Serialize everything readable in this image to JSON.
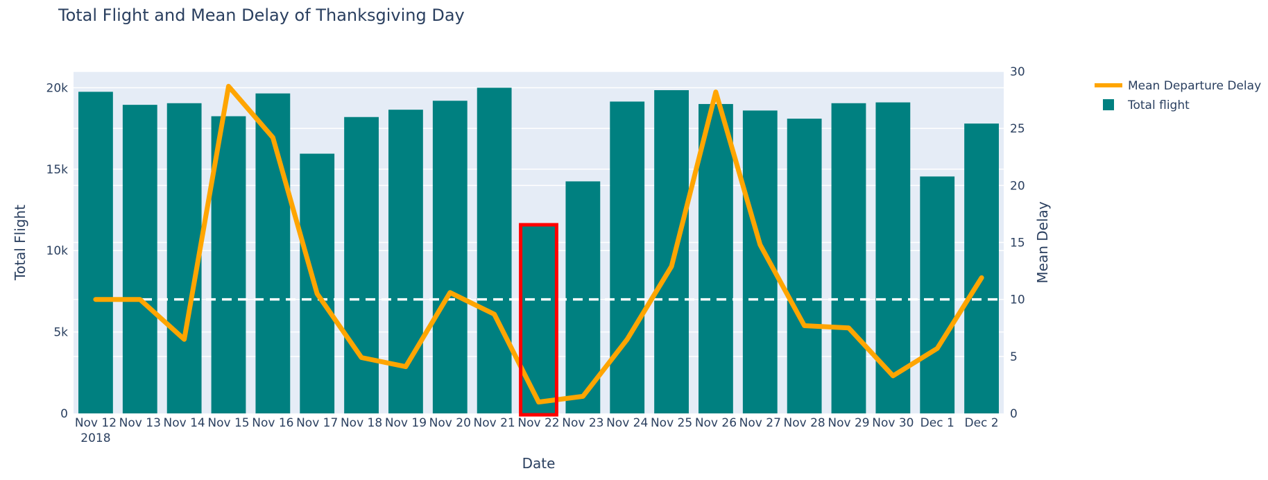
{
  "chart_data": {
    "type": "bar",
    "title": "Total Flight and Mean Delay of Thanksgiving Day",
    "xlabel": "Date",
    "ylabel": "Total Flight",
    "y2label": "Mean Delay",
    "categories": [
      "Nov 12\n2018",
      "Nov 13",
      "Nov 14",
      "Nov 15",
      "Nov 16",
      "Nov 17",
      "Nov 18",
      "Nov 19",
      "Nov 20",
      "Nov 21",
      "Nov 22",
      "Nov 23",
      "Nov 24",
      "Nov 25",
      "Nov 26",
      "Nov 27",
      "Nov 28",
      "Nov 29",
      "Nov 30",
      "Dec 1",
      "Dec 2"
    ],
    "ylim": [
      0,
      21000
    ],
    "y2lim": [
      0,
      30
    ],
    "y_ticks": [
      {
        "v": 0,
        "label": "0"
      },
      {
        "v": 5000,
        "label": "5k"
      },
      {
        "v": 10000,
        "label": "10k"
      },
      {
        "v": 15000,
        "label": "15k"
      },
      {
        "v": 20000,
        "label": "20k"
      }
    ],
    "y2_ticks": [
      0,
      5,
      10,
      15,
      20,
      25,
      30
    ],
    "series": [
      {
        "name": "Total flight",
        "type": "bar",
        "axis": "y",
        "color": "#008080",
        "values": [
          19750,
          18950,
          19050,
          18250,
          19650,
          15950,
          18200,
          18650,
          19200,
          20000,
          11500,
          14250,
          19150,
          19850,
          19000,
          18600,
          18100,
          19050,
          19100,
          14550,
          17800
        ]
      },
      {
        "name": "Mean Departure Delay",
        "type": "line",
        "axis": "y2",
        "color": "#FFA500",
        "values": [
          10.0,
          10.0,
          6.5,
          28.7,
          24.2,
          10.5,
          4.9,
          4.1,
          10.6,
          8.7,
          1.0,
          1.5,
          6.5,
          12.9,
          28.2,
          14.8,
          7.7,
          7.5,
          3.3,
          5.7,
          11.9
        ]
      }
    ],
    "reference_line": {
      "axis": "y2",
      "value": 10,
      "color": "#ffffff",
      "style": "dashed"
    },
    "highlight": {
      "category": "Nov 22",
      "color": "#ff0000"
    },
    "legend": {
      "placement": "top-right"
    },
    "grid": true,
    "plot_bgcolor": "#E5ECF6"
  }
}
